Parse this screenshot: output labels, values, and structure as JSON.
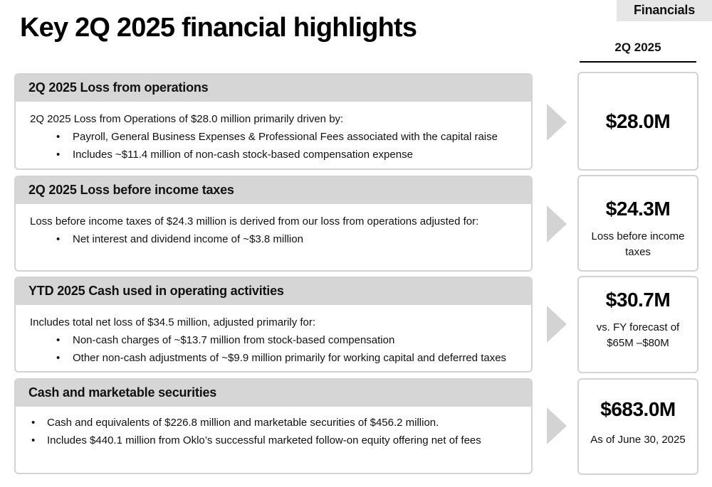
{
  "header": {
    "tag": "Financials",
    "title": "Key 2Q 2025 financial highlights",
    "column_label": "2Q 2025"
  },
  "sections": [
    {
      "heading": "2Q 2025 Loss from operations",
      "lead": "2Q 2025 Loss from Operations of $28.0 million primarily driven by:",
      "bullets": [
        "Payroll, General Business Expenses & Professional Fees associated with the capital raise",
        "Includes ~$11.4 million of non-cash stock-based compensation expense"
      ],
      "metric": {
        "value": "$28.0M",
        "note": ""
      }
    },
    {
      "heading": "2Q 2025 Loss before income taxes",
      "lead": "Loss before income taxes of $24.3 million is derived from our loss from operations adjusted for:",
      "bullets": [
        "Net interest and dividend income of ~$3.8 million"
      ],
      "metric": {
        "value": "$24.3M",
        "note": "Loss before income taxes"
      }
    },
    {
      "heading": "YTD 2025 Cash used in operating activities",
      "lead": "Includes total net loss of $34.5 million, adjusted primarily for:",
      "bullets": [
        "Non-cash charges of ~$13.7 million from stock-based compensation",
        "Other non-cash adjustments of ~$9.9 million primarily for working capital and deferred taxes"
      ],
      "metric": {
        "value": "$30.7M",
        "note": "vs. FY forecast of $65M –$80M"
      }
    },
    {
      "heading": "Cash and marketable securities",
      "lead": "",
      "bullets": [
        "Cash and equivalents of $226.8 million and marketable securities of $456.2 million.",
        "Includes $440.1 million from Oklo’s successful marketed follow-on equity offering net of fees"
      ],
      "metric": {
        "value": "$683.0M",
        "note": "As of June 30, 2025"
      }
    }
  ]
}
